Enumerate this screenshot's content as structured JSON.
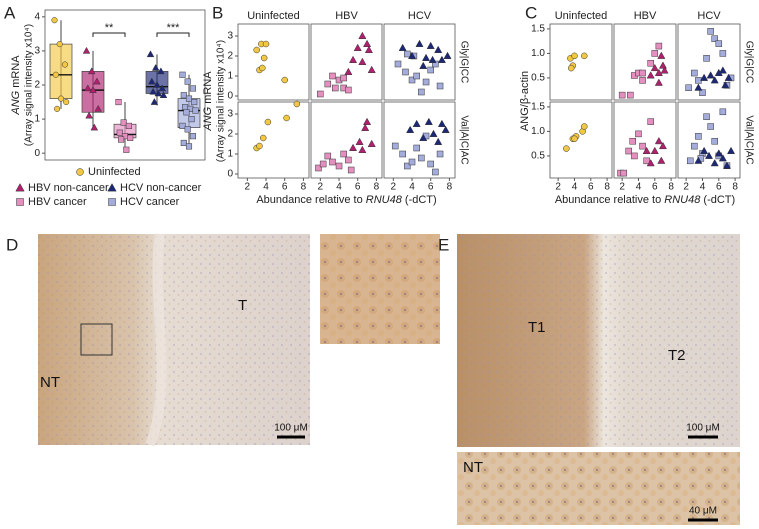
{
  "chart_data": [
    {
      "type": "box",
      "ylabel": [
        "ANG",
        " mRNA"
      ],
      "ylabel2": "(Array signal intensity x10⁴)",
      "ylim": [
        -0.2,
        4.2
      ],
      "yticks": [
        0,
        1,
        2,
        3,
        4
      ],
      "annotations": [
        "**",
        "***"
      ],
      "series": [
        {
          "name": "Uninfected",
          "color": "#f2c744",
          "marker": "circle",
          "stats": {
            "min": 1.3,
            "q1": 1.6,
            "median": 2.3,
            "q3": 3.2,
            "max": 3.9
          },
          "values": [
            3.9,
            3.2,
            2.6,
            2.3,
            1.6,
            1.5,
            1.3
          ]
        },
        {
          "name": "HBV non-cancer",
          "color": "#b0206e",
          "marker": "triangle",
          "stats": {
            "min": 0.75,
            "q1": 1.2,
            "median": 1.85,
            "q3": 2.4,
            "max": 3.0
          },
          "values": [
            3.0,
            2.4,
            2.1,
            1.9,
            1.85,
            1.3,
            1.1,
            0.75
          ]
        },
        {
          "name": "HBV cancer",
          "color": "#e48fc0",
          "marker": "square",
          "stats": {
            "min": 0.1,
            "q1": 0.45,
            "median": 0.55,
            "q3": 0.85,
            "max": 1.5
          },
          "values": [
            1.5,
            0.9,
            0.8,
            0.6,
            0.5,
            0.45,
            0.4,
            0.1
          ]
        },
        {
          "name": "HCV non-cancer",
          "color": "#1c2775",
          "marker": "triangle",
          "stats": {
            "min": 1.4,
            "q1": 1.75,
            "median": 1.95,
            "q3": 2.4,
            "max": 2.9
          },
          "values": [
            2.9,
            2.5,
            2.4,
            2.1,
            2.0,
            1.9,
            1.8,
            1.75,
            1.7,
            1.5
          ]
        },
        {
          "name": "HCV cancer",
          "color": "#a3acdb",
          "marker": "square",
          "stats": {
            "min": 0.2,
            "q1": 0.75,
            "median": 1.25,
            "q3": 1.6,
            "max": 2.3
          },
          "values": [
            2.3,
            2.1,
            1.9,
            1.7,
            1.6,
            1.5,
            1.35,
            1.3,
            1.25,
            1.2,
            1.0,
            0.8,
            0.7,
            0.5,
            0.3,
            0.2
          ]
        }
      ]
    },
    {
      "type": "scatter",
      "columns": [
        "Uninfected",
        "HBV",
        "HCV"
      ],
      "rows": [
        "Gly|G|CC",
        "Val|A|C|AC"
      ],
      "xlabel": [
        "Abundance relative to ",
        "RNU48",
        " (-dCT)"
      ],
      "ylabel": [
        "ANG",
        " mRNA"
      ],
      "ylabel2": "(Array signal intensity x10⁴)",
      "xlim": [
        1,
        8.6
      ],
      "xticks": [
        2,
        4,
        6,
        8
      ],
      "ylim": [
        -0.2,
        3.6
      ],
      "yticks": [
        0,
        1,
        2,
        3
      ],
      "panels": [
        [
          {
            "series": [
              {
                "color": "#f2c744",
                "marker": "circle",
                "x": [
                  3.0,
                  3.5,
                  4.0,
                  3.8,
                  3.3,
                  3.6,
                  6.0
                ],
                "values": [
                  2.3,
                  2.6,
                  2.6,
                  1.9,
                  1.3,
                  1.4,
                  0.8
                ]
              }
            ]
          },
          {
            "series": [
              {
                "color": "#e48fc0",
                "marker": "square",
                "x": [
                  2.0,
                  2.8,
                  3.3,
                  4.0,
                  4.5,
                  4.5,
                  5.0,
                  3.6
                ],
                "values": [
                  0.1,
                  0.6,
                  1.0,
                  0.8,
                  0.9,
                  0.4,
                  0.3,
                  0.4
                ]
              },
              {
                "color": "#b0206e",
                "marker": "triangle",
                "x": [
                  5.5,
                  6.0,
                  6.5,
                  7.0,
                  7.2,
                  6.5,
                  7.5,
                  5.0
                ],
                "values": [
                  1.8,
                  2.4,
                  1.7,
                  2.6,
                  2.3,
                  3.0,
                  1.3,
                  1.2
                ]
              }
            ]
          },
          {
            "series": [
              {
                "color": "#a3acdb",
                "marker": "square",
                "x": [
                  2.5,
                  3.3,
                  4.0,
                  4.5,
                  5.0,
                  5.5,
                  6.0,
                  6.5,
                  7.0,
                  4.2,
                  3.5
                ],
                "values": [
                  1.6,
                  1.2,
                  0.8,
                  1.0,
                  0.2,
                  0.7,
                  1.3,
                  1.6,
                  0.5,
                  2.0,
                  2.1
                ]
              },
              {
                "color": "#1c2775",
                "marker": "triangle",
                "x": [
                  3.0,
                  4.0,
                  4.8,
                  5.5,
                  6.0,
                  6.2,
                  6.8,
                  7.2,
                  7.8,
                  5.2
                ],
                "values": [
                  2.4,
                  2.0,
                  2.6,
                  1.9,
                  2.5,
                  1.8,
                  2.3,
                  1.8,
                  2.0,
                  1.5
                ]
              }
            ]
          }
        ],
        [
          {
            "series": [
              {
                "color": "#f2c744",
                "marker": "circle",
                "x": [
                  3.0,
                  3.3,
                  3.7,
                  4.2,
                  6.2,
                  7.3
                ],
                "values": [
                  1.3,
                  1.4,
                  1.8,
                  2.6,
                  2.8,
                  3.5
                ]
              }
            ]
          },
          {
            "series": [
              {
                "color": "#e48fc0",
                "marker": "square",
                "x": [
                  1.8,
                  2.3,
                  2.8,
                  3.3,
                  4.0,
                  4.5,
                  5.3,
                  5.0
                ],
                "values": [
                  0.3,
                  0.5,
                  0.9,
                  0.6,
                  0.4,
                  1.0,
                  0.2,
                  0.7
                ]
              },
              {
                "color": "#b0206e",
                "marker": "triangle",
                "x": [
                  5.5,
                  6.2,
                  6.8,
                  7.0,
                  7.5,
                  6.5
                ],
                "values": [
                  1.3,
                  1.6,
                  2.3,
                  2.6,
                  1.5,
                  1.2
                ]
              }
            ]
          },
          {
            "series": [
              {
                "color": "#a3acdb",
                "marker": "square",
                "x": [
                  2.2,
                  3.0,
                  3.5,
                  4.0,
                  4.5,
                  5.0,
                  5.5,
                  6.0,
                  6.5,
                  7.0
                ],
                "values": [
                  1.4,
                  1.0,
                  0.4,
                  0.6,
                  1.3,
                  0.8,
                  1.9,
                  0.5,
                  0.1,
                  1.0
                ]
              },
              {
                "color": "#1c2775",
                "marker": "triangle",
                "x": [
                  3.8,
                  4.5,
                  5.2,
                  5.8,
                  6.3,
                  6.8,
                  7.2,
                  7.6
                ],
                "values": [
                  2.2,
                  2.5,
                  1.8,
                  2.6,
                  2.0,
                  1.6,
                  2.5,
                  2.2
                ]
              }
            ]
          }
        ]
      ]
    },
    {
      "type": "scatter",
      "columns": [
        "Uninfected",
        "HBV",
        "HCV"
      ],
      "rows": [
        "Gly|G|CC",
        "Val|A|C|AC"
      ],
      "xlabel": [
        "Abundance relative to ",
        "RNU48",
        " (-dCT)"
      ],
      "ylabel": [
        "ANG/β-actin"
      ],
      "xlim": [
        1,
        8.6
      ],
      "xticks": [
        2,
        4,
        6,
        8
      ],
      "ylim": [
        0.05,
        1.6
      ],
      "yticks": [
        0.5,
        {
          "value": 1,
          "label": "1.0"
        },
        1.5
      ],
      "panels": [
        [
          {
            "series": [
              {
                "color": "#f2c744",
                "marker": "circle",
                "x": [
                  3.5,
                  3.8,
                  4.0,
                  3.6,
                  5.2
                ],
                "values": [
                  0.9,
                  0.75,
                  0.95,
                  0.7,
                  0.95
                ]
              }
            ]
          },
          {
            "series": [
              {
                "color": "#e48fc0",
                "marker": "square",
                "x": [
                  2.0,
                  3.0,
                  3.5,
                  4.0,
                  4.5,
                  4.5,
                  5.5,
                  6.5,
                  6.0
                ],
                "values": [
                  0.15,
                  0.15,
                  0.55,
                  0.6,
                  0.6,
                  0.45,
                  0.8,
                  1.15,
                  1.0
                ]
              },
              {
                "color": "#b0206e",
                "marker": "triangle",
                "x": [
                  5.5,
                  6.0,
                  6.5,
                  7.0,
                  7.2,
                  6.8,
                  6.5
                ],
                "values": [
                  0.55,
                  0.7,
                  0.6,
                  0.75,
                  0.65,
                  0.95,
                  0.4
                ]
              }
            ]
          },
          {
            "series": [
              {
                "color": "#a3acdb",
                "marker": "square",
                "x": [
                  2.3,
                  3.0,
                  3.5,
                  4.0,
                  4.5,
                  5.0,
                  5.5,
                  6.0,
                  6.5,
                  7.0,
                  7.5
                ],
                "values": [
                  0.3,
                  0.6,
                  0.45,
                  0.2,
                  0.9,
                  1.45,
                  1.3,
                  1.2,
                  1.0,
                  0.35,
                  0.5
                ]
              },
              {
                "color": "#1c2775",
                "marker": "triangle",
                "x": [
                  3.5,
                  4.2,
                  5.0,
                  5.5,
                  6.0,
                  6.5,
                  6.8,
                  7.2
                ],
                "values": [
                  0.3,
                  0.5,
                  0.55,
                  0.45,
                  0.6,
                  0.65,
                  0.35,
                  0.5
                ]
              }
            ]
          }
        ],
        [
          {
            "series": [
              {
                "color": "#f2c744",
                "marker": "circle",
                "x": [
                  3.0,
                  3.8,
                  4.2,
                  5.0,
                  5.2,
                  4.0
                ],
                "values": [
                  0.65,
                  0.85,
                  0.9,
                  1.0,
                  1.1,
                  0.85
                ]
              }
            ]
          },
          {
            "series": [
              {
                "color": "#e48fc0",
                "marker": "square",
                "x": [
                  1.8,
                  2.2,
                  2.8,
                  3.3,
                  3.5,
                  4.0,
                  4.5,
                  5.0,
                  5.5
                ],
                "values": [
                  0.15,
                  0.15,
                  0.6,
                  0.8,
                  0.5,
                  0.95,
                  0.7,
                  0.4,
                  1.2
                ]
              },
              {
                "color": "#b0206e",
                "marker": "triangle",
                "x": [
                  5.0,
                  5.5,
                  6.0,
                  6.5,
                  7.0,
                  6.8
                ],
                "values": [
                  0.6,
                  0.35,
                  0.6,
                  0.8,
                  0.7,
                  0.4
                ]
              }
            ]
          },
          {
            "series": [
              {
                "color": "#a3acdb",
                "marker": "square",
                "x": [
                  2.5,
                  3.0,
                  3.5,
                  4.0,
                  4.5,
                  5.0,
                  5.5,
                  6.0,
                  6.5,
                  7.0,
                  3.8
                ],
                "values": [
                  0.4,
                  0.7,
                  0.9,
                  0.55,
                  1.3,
                  1.1,
                  0.8,
                  0.5,
                  1.4,
                  0.3,
                  0.45
                ]
              },
              {
                "color": "#1c2775",
                "marker": "triangle",
                "x": [
                  3.5,
                  4.2,
                  4.8,
                  5.5,
                  6.0,
                  6.5,
                  7.0,
                  7.5
                ],
                "values": [
                  0.4,
                  0.6,
                  0.5,
                  0.35,
                  0.55,
                  0.45,
                  0.3,
                  0.6
                ]
              }
            ]
          }
        ]
      ]
    }
  ],
  "figure": {
    "panel_labels": [
      "A",
      "B",
      "C",
      "D",
      "E"
    ],
    "panel_d": {
      "regions": [
        "NT",
        "T"
      ],
      "scale_bar": "100 μM"
    },
    "panel_e": {
      "regions": [
        "T1",
        "T2"
      ],
      "scale_bar": "100 μM",
      "inset_region": "NT",
      "inset_scale_bar": "40 μM"
    }
  }
}
